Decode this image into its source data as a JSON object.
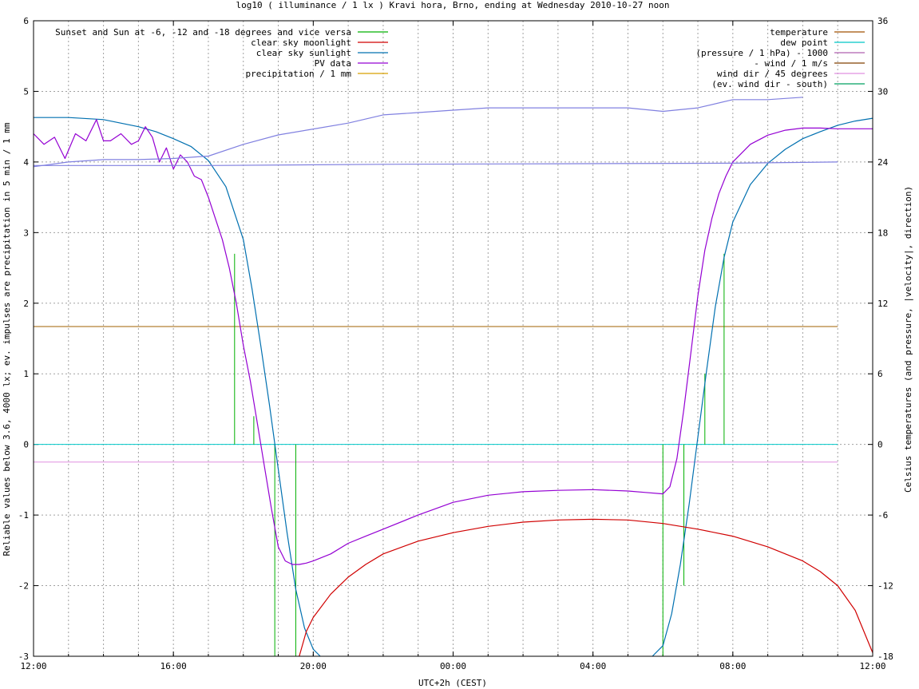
{
  "chart_data": {
    "type": "line",
    "title": "log10 ( illuminance / 1 lx ) Kravi hora, Brno, ending at Wednesday 2010-10-27 noon",
    "xlabel": "UTC+2h (CEST)",
    "ylabel": "Reliable values below 3.6, 4000 lx; ev. impulses are precipitation in 5 min / 1 mm",
    "y2label": "Celsius temperatures (and pressure, |velocity|, direction)",
    "x_unit": "hours since 12:00 (2010-10-26)",
    "xlim": [
      0,
      24
    ],
    "ylim": [
      -3,
      6
    ],
    "y2lim": [
      -18,
      36
    ],
    "x_ticks": [
      {
        "v": 0,
        "label": "12:00"
      },
      {
        "v": 4,
        "label": "16:00"
      },
      {
        "v": 8,
        "label": "20:00"
      },
      {
        "v": 12,
        "label": "00:00"
      },
      {
        "v": 16,
        "label": "04:00"
      },
      {
        "v": 20,
        "label": "08:00"
      },
      {
        "v": 24,
        "label": "12:00"
      }
    ],
    "y_ticks": [
      {
        "v": -3,
        "label": "-3"
      },
      {
        "v": -2,
        "label": "-2"
      },
      {
        "v": -1,
        "label": "-1"
      },
      {
        "v": 0,
        "label": "0"
      },
      {
        "v": 1,
        "label": "1"
      },
      {
        "v": 2,
        "label": "2"
      },
      {
        "v": 3,
        "label": "3"
      },
      {
        "v": 4,
        "label": "4"
      },
      {
        "v": 5,
        "label": "5"
      },
      {
        "v": 6,
        "label": "6"
      }
    ],
    "y2_ticks": [
      {
        "v": -18,
        "label": "-18"
      },
      {
        "v": -12,
        "label": "-12"
      },
      {
        "v": -6,
        "label": "-6"
      },
      {
        "v": 0,
        "label": "0"
      },
      {
        "v": 6,
        "label": "6"
      },
      {
        "v": 12,
        "label": "12"
      },
      {
        "v": 18,
        "label": "18"
      },
      {
        "v": 24,
        "label": "24"
      },
      {
        "v": 30,
        "label": "30"
      },
      {
        "v": 36,
        "label": "36"
      }
    ],
    "grid": true,
    "legend_left": [
      {
        "name": "Sunset and Sun at -6, -12 and -18 degrees and vice versa",
        "color": "#00b000"
      },
      {
        "name": "clear sky moonlight",
        "color": "#d00000"
      },
      {
        "name": "clear sky sunlight",
        "color": "#0070b0"
      },
      {
        "name": "PV data",
        "color": "#9400d3"
      },
      {
        "name": "precipitation / 1 mm",
        "color": "#d8a000"
      }
    ],
    "legend_right": [
      {
        "name": "temperature",
        "color": "#a05000"
      },
      {
        "name": "dew point",
        "color": "#00c8c8"
      },
      {
        "name": "(pressure / 1 hPa) - 1000",
        "color": "#b060b0"
      },
      {
        "name": "- wind / 1 m/s",
        "color": "#804000"
      },
      {
        "name": "wind dir / 45 degrees",
        "color": "#e090e0"
      },
      {
        "name": "(ev. wind dir - south)",
        "color": "#00a060"
      }
    ],
    "series": [
      {
        "name": "clear sky sunlight",
        "color": "#0070b0",
        "axis": "y",
        "x": [
          0,
          1,
          2,
          3,
          3.5,
          4,
          4.5,
          5,
          5.5,
          6,
          6.25,
          6.5,
          6.75,
          7,
          7.25,
          7.5,
          7.75,
          8,
          8.2
        ],
        "y": [
          4.63,
          4.63,
          4.6,
          4.5,
          4.43,
          4.33,
          4.22,
          4.02,
          3.65,
          2.9,
          2.2,
          1.4,
          0.55,
          -0.35,
          -1.25,
          -2.05,
          -2.6,
          -2.9,
          -3.0
        ]
      },
      {
        "name": "clear sky sunlight (morning)",
        "color": "#0070b0",
        "axis": "y",
        "x": [
          17.7,
          18,
          18.25,
          18.5,
          18.75,
          19,
          19.25,
          19.5,
          19.75,
          20,
          20.5,
          21,
          21.5,
          22,
          22.5,
          23,
          23.5,
          24
        ],
        "y": [
          -3.0,
          -2.85,
          -2.4,
          -1.7,
          -0.85,
          0.1,
          1.05,
          1.95,
          2.65,
          3.15,
          3.68,
          3.98,
          4.18,
          4.33,
          4.43,
          4.52,
          4.58,
          4.62
        ]
      },
      {
        "name": "clear sky moonlight",
        "color": "#d00000",
        "axis": "y",
        "x": [
          7.6,
          7.8,
          8,
          8.5,
          9,
          9.5,
          10,
          11,
          12,
          13,
          14,
          15,
          16,
          17,
          18,
          19,
          20,
          21,
          22,
          22.5,
          23,
          23.5,
          24
        ],
        "y": [
          -3.0,
          -2.65,
          -2.45,
          -2.12,
          -1.88,
          -1.7,
          -1.55,
          -1.37,
          -1.25,
          -1.16,
          -1.1,
          -1.07,
          -1.06,
          -1.07,
          -1.12,
          -1.2,
          -1.3,
          -1.45,
          -1.65,
          -1.8,
          -2.0,
          -2.35,
          -2.95
        ]
      },
      {
        "name": "PV data",
        "color": "#9400d3",
        "axis": "y",
        "x": [
          0,
          0.3,
          0.6,
          0.9,
          1.2,
          1.5,
          1.8,
          2.0,
          2.2,
          2.5,
          2.8,
          3.0,
          3.2,
          3.4,
          3.6,
          3.8,
          4.0,
          4.2,
          4.4,
          4.6,
          4.8,
          5.0,
          5.2,
          5.4,
          5.6,
          5.8,
          6.0,
          6.2,
          6.4,
          6.6,
          6.8,
          7.0,
          7.2,
          7.4,
          7.6,
          7.8,
          8,
          8.5,
          9,
          9.5,
          10,
          11,
          12,
          13,
          14,
          15,
          16,
          17,
          17.5,
          18,
          18.2,
          18.4,
          18.6,
          18.8,
          19,
          19.2,
          19.4,
          19.6,
          19.8,
          20,
          20.5,
          21,
          21.5,
          22,
          22.5,
          23,
          23.5,
          24
        ],
        "y": [
          4.4,
          4.25,
          4.35,
          4.05,
          4.4,
          4.3,
          4.6,
          4.3,
          4.3,
          4.4,
          4.25,
          4.3,
          4.5,
          4.35,
          4.0,
          4.2,
          3.9,
          4.1,
          4.0,
          3.8,
          3.75,
          3.5,
          3.2,
          2.9,
          2.5,
          2.0,
          1.4,
          0.9,
          0.3,
          -0.3,
          -0.9,
          -1.45,
          -1.65,
          -1.7,
          -1.7,
          -1.68,
          -1.65,
          -1.55,
          -1.4,
          -1.3,
          -1.2,
          -1.0,
          -0.82,
          -0.72,
          -0.67,
          -0.65,
          -0.64,
          -0.66,
          -0.68,
          -0.7,
          -0.6,
          -0.2,
          0.5,
          1.3,
          2.1,
          2.75,
          3.2,
          3.55,
          3.8,
          4.0,
          4.25,
          4.38,
          4.45,
          4.48,
          4.48,
          4.47,
          4.47,
          4.47
        ]
      },
      {
        "name": "(pressure / 1 hPa) - 1000",
        "color": "#8080e0",
        "axis": "y2",
        "x": [
          0,
          1,
          2,
          3,
          4,
          5,
          6,
          7,
          8,
          9,
          10,
          11,
          12,
          13,
          14,
          15,
          16,
          17,
          18,
          19,
          20,
          21,
          22
        ],
        "y": [
          23.6,
          24.0,
          24.2,
          24.2,
          24.3,
          24.5,
          25.5,
          26.3,
          26.8,
          27.3,
          28.0,
          28.2,
          28.4,
          28.6,
          28.6,
          28.6,
          28.6,
          28.6,
          28.3,
          28.6,
          29.3,
          29.3,
          29.5
        ]
      },
      {
        "name": "dew point (upper)",
        "color": "#8080e0",
        "axis": "y2",
        "x": [
          0,
          5,
          10,
          15,
          20,
          23
        ],
        "y": [
          23.7,
          23.7,
          23.8,
          23.85,
          23.9,
          24.0
        ]
      }
    ],
    "hlines": [
      {
        "name": "- wind / 1 m/s",
        "color": "#a06000",
        "axis": "y",
        "y": 1.67,
        "x": [
          0,
          23
        ]
      },
      {
        "name": "dew point",
        "color": "#00c8c8",
        "axis": "y",
        "y": 0.0,
        "x": [
          0,
          23
        ]
      },
      {
        "name": "wind dir / 45 degrees",
        "color": "#e090e0",
        "axis": "y",
        "y": -0.25,
        "x": [
          0,
          23
        ]
      }
    ],
    "impulses": [
      {
        "x": 5.75,
        "y0": 0,
        "y1": 2.7
      },
      {
        "x": 6.3,
        "y0": 0,
        "y1": 0.4
      },
      {
        "x": 6.9,
        "y0": 0,
        "y1": -3.0
      },
      {
        "x": 7.5,
        "y0": 0,
        "y1": -3.0
      },
      {
        "x": 18.0,
        "y0": 0,
        "y1": -3.0
      },
      {
        "x": 18.6,
        "y0": 0,
        "y1": -2.0
      },
      {
        "x": 19.2,
        "y0": 0,
        "y1": 1.0
      },
      {
        "x": 19.75,
        "y0": 0,
        "y1": 2.7
      }
    ],
    "impulse_color": "#00b000"
  }
}
